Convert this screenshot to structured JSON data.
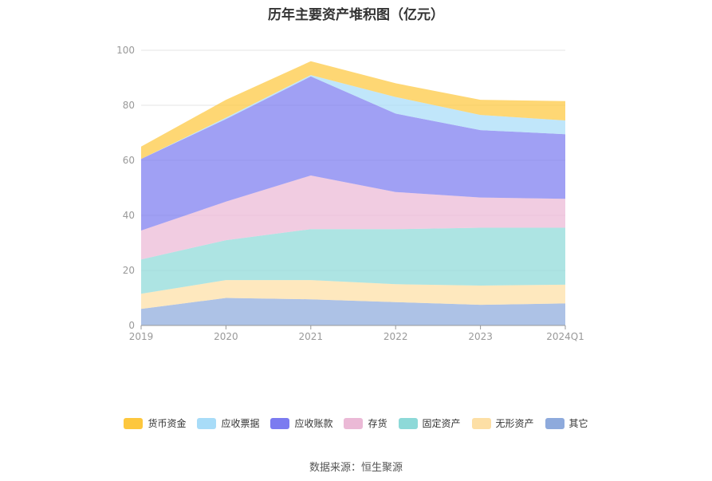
{
  "chart_data": {
    "type": "area",
    "stacked": true,
    "title": "历年主要资产堆积图（亿元）",
    "categories": [
      "2019",
      "2020",
      "2021",
      "2022",
      "2023",
      "2024Q1"
    ],
    "ylim": [
      0,
      100
    ],
    "yticks": [
      "0",
      "20",
      "40",
      "60",
      "80",
      "100"
    ],
    "grid": true,
    "legend_position": "bottom",
    "series": [
      {
        "name": "其它",
        "color": "#8eaadc",
        "values": [
          6,
          10,
          9.5,
          8.5,
          7.5,
          8
        ]
      },
      {
        "name": "无形资产",
        "color": "#fddfa5",
        "values": [
          5.5,
          6.5,
          7,
          6.5,
          7,
          6.8
        ]
      },
      {
        "name": "固定资产",
        "color": "#8dd9d8",
        "values": [
          12.5,
          14.5,
          18.5,
          20,
          21,
          20.7
        ]
      },
      {
        "name": "存货",
        "color": "#ebb9d6",
        "values": [
          10.5,
          14,
          19.5,
          13.5,
          11,
          10.5
        ]
      },
      {
        "name": "应收账款",
        "color": "#7b7bf0",
        "values": [
          26,
          30,
          36,
          28.5,
          24.5,
          23.5
        ]
      },
      {
        "name": "应收票据",
        "color": "#a8dcf8",
        "values": [
          0,
          0.5,
          0.5,
          6,
          5.5,
          5
        ]
      },
      {
        "name": "货币资金",
        "color": "#fdc73e",
        "values": [
          4.5,
          6.5,
          5,
          5,
          5.5,
          7
        ]
      }
    ]
  },
  "legend_order": [
    "货币资金",
    "应收票据",
    "应收账款",
    "存货",
    "固定资产",
    "无形资产",
    "其它"
  ],
  "source_text": "数据来源：恒生聚源"
}
